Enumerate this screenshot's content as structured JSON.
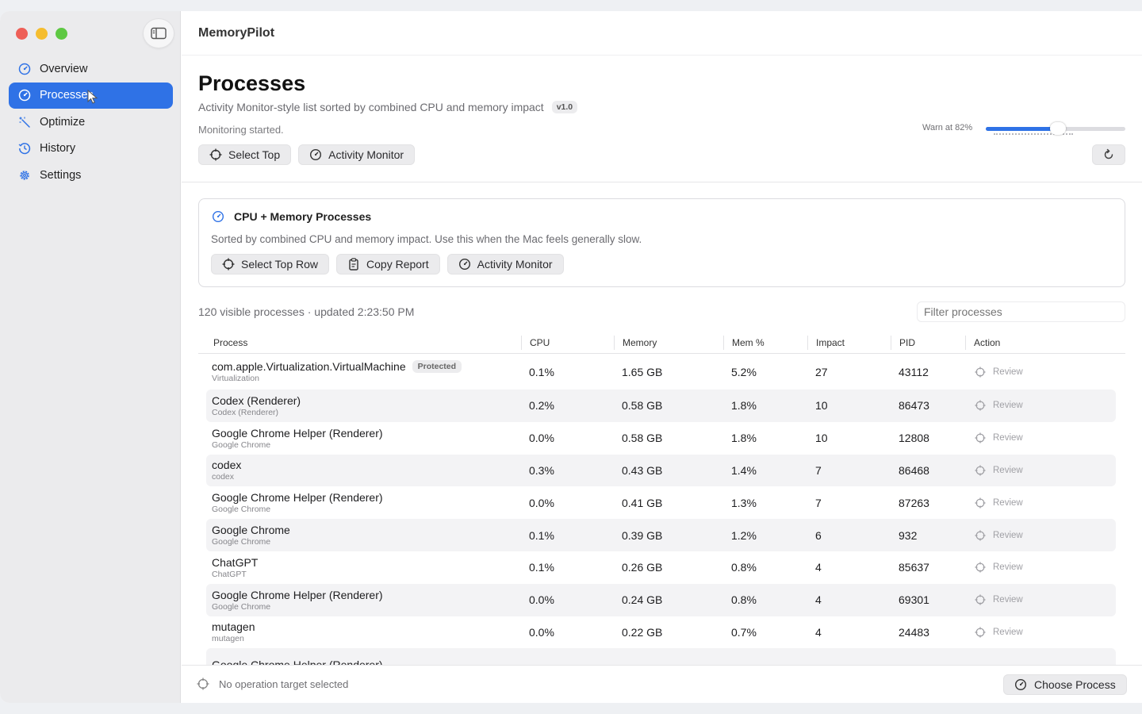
{
  "app": {
    "title": "MemoryPilot"
  },
  "sidebar": {
    "items": [
      {
        "label": "Overview",
        "icon": "gauge-icon",
        "active": false
      },
      {
        "label": "Processes",
        "icon": "gauge-icon",
        "active": true
      },
      {
        "label": "Optimize",
        "icon": "wand-icon",
        "active": false
      },
      {
        "label": "History",
        "icon": "clock-icon",
        "active": false
      },
      {
        "label": "Settings",
        "icon": "gear-icon",
        "active": false
      }
    ]
  },
  "header": {
    "title": "Processes",
    "subtitle": "Activity Monitor-style list sorted by combined CPU and memory impact",
    "version": "v1.0",
    "status": "Monitoring started.",
    "select_top_label": "Select Top",
    "activity_monitor_label": "Activity Monitor",
    "warn_label": "Warn at 82%",
    "warn_threshold_percent": 82
  },
  "card": {
    "title": "CPU + Memory Processes",
    "description": "Sorted by combined CPU and memory impact. Use this when the Mac feels generally slow.",
    "select_top_row_label": "Select Top Row",
    "copy_report_label": "Copy Report",
    "activity_monitor_label": "Activity Monitor"
  },
  "list": {
    "summary": "120 visible processes · updated 2:23:50 PM",
    "filter_placeholder": "Filter processes",
    "columns": {
      "process": "Process",
      "cpu": "CPU",
      "memory": "Memory",
      "mem_pct": "Mem %",
      "impact": "Impact",
      "pid": "PID",
      "action": "Action"
    },
    "rows": [
      {
        "name": "com.apple.Virtualization.VirtualMachine",
        "sub": "Virtualization",
        "badge": "Protected",
        "cpu": "0.1%",
        "memory": "1.65 GB",
        "mem_pct": "5.2%",
        "impact": "27",
        "pid": "43112",
        "action": "Review"
      },
      {
        "name": "Codex (Renderer)",
        "sub": "Codex (Renderer)",
        "badge": "",
        "cpu": "0.2%",
        "memory": "0.58 GB",
        "mem_pct": "1.8%",
        "impact": "10",
        "pid": "86473",
        "action": "Review"
      },
      {
        "name": "Google Chrome Helper (Renderer)",
        "sub": "Google Chrome",
        "badge": "",
        "cpu": "0.0%",
        "memory": "0.58 GB",
        "mem_pct": "1.8%",
        "impact": "10",
        "pid": "12808",
        "action": "Review"
      },
      {
        "name": "codex",
        "sub": "codex",
        "badge": "",
        "cpu": "0.3%",
        "memory": "0.43 GB",
        "mem_pct": "1.4%",
        "impact": "7",
        "pid": "86468",
        "action": "Review"
      },
      {
        "name": "Google Chrome Helper (Renderer)",
        "sub": "Google Chrome",
        "badge": "",
        "cpu": "0.0%",
        "memory": "0.41 GB",
        "mem_pct": "1.3%",
        "impact": "7",
        "pid": "87263",
        "action": "Review"
      },
      {
        "name": "Google Chrome",
        "sub": "Google Chrome",
        "badge": "",
        "cpu": "0.1%",
        "memory": "0.39 GB",
        "mem_pct": "1.2%",
        "impact": "6",
        "pid": "932",
        "action": "Review"
      },
      {
        "name": "ChatGPT",
        "sub": "ChatGPT",
        "badge": "",
        "cpu": "0.1%",
        "memory": "0.26 GB",
        "mem_pct": "0.8%",
        "impact": "4",
        "pid": "85637",
        "action": "Review"
      },
      {
        "name": "Google Chrome Helper (Renderer)",
        "sub": "Google Chrome",
        "badge": "",
        "cpu": "0.0%",
        "memory": "0.24 GB",
        "mem_pct": "0.8%",
        "impact": "4",
        "pid": "69301",
        "action": "Review"
      },
      {
        "name": "mutagen",
        "sub": "mutagen",
        "badge": "",
        "cpu": "0.0%",
        "memory": "0.22 GB",
        "mem_pct": "0.7%",
        "impact": "4",
        "pid": "24483",
        "action": "Review"
      },
      {
        "name": "Google Chrome Helper (Renderer)",
        "sub": "",
        "badge": "",
        "cpu": "",
        "memory": "",
        "mem_pct": "",
        "impact": "",
        "pid": "",
        "action": ""
      }
    ]
  },
  "footer": {
    "status": "No operation target selected",
    "choose_label": "Choose Process"
  },
  "colors": {
    "accent": "#2f72e6",
    "close": "#ee5f57",
    "minimize": "#f5bd2f",
    "zoom": "#5ec843"
  }
}
